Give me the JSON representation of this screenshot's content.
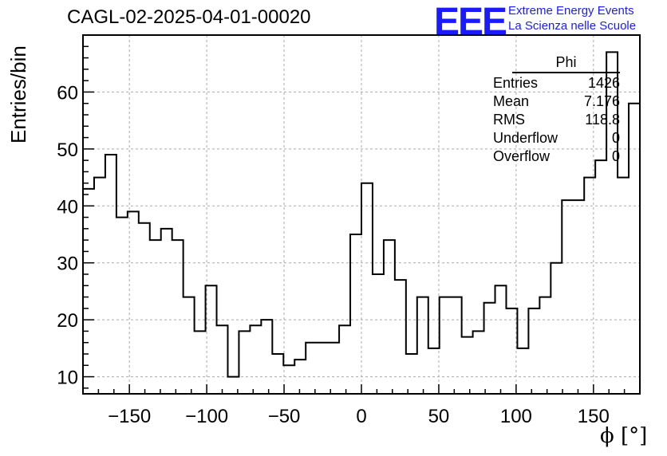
{
  "header": {
    "title": "CAGL-02-2025-04-01-00020",
    "logo": "EEE",
    "logo_line1": "Extreme Energy Events",
    "logo_line2": "La Scienza nelle Scuole"
  },
  "stats": {
    "name": "Phi",
    "rows": [
      {
        "label": "Entries",
        "value": "1426"
      },
      {
        "label": "Mean",
        "value": "7.176"
      },
      {
        "label": "RMS",
        "value": "118.8"
      },
      {
        "label": "Underflow",
        "value": "0"
      },
      {
        "label": "Overflow",
        "value": "0"
      }
    ]
  },
  "chart_data": {
    "type": "histogram",
    "xlabel": "ϕ [°]",
    "ylabel": "Entries/bin",
    "xlim": [
      -180,
      180
    ],
    "ylim": [
      7,
      70
    ],
    "xticks": [
      -150,
      -100,
      -50,
      0,
      50,
      100,
      150
    ],
    "yticks": [
      10,
      20,
      30,
      40,
      50,
      60
    ],
    "grid": true,
    "bin_width": 7.2,
    "values": [
      43,
      45,
      49,
      38,
      39,
      37,
      34,
      36,
      34,
      24,
      18,
      26,
      19,
      10,
      18,
      19,
      20,
      14,
      12,
      13,
      16,
      16,
      16,
      19,
      35,
      44,
      28,
      34,
      27,
      14,
      24,
      15,
      24,
      24,
      17,
      18,
      23,
      26,
      22,
      15,
      22,
      24,
      30,
      41,
      41,
      45,
      48,
      67,
      45,
      58
    ]
  }
}
